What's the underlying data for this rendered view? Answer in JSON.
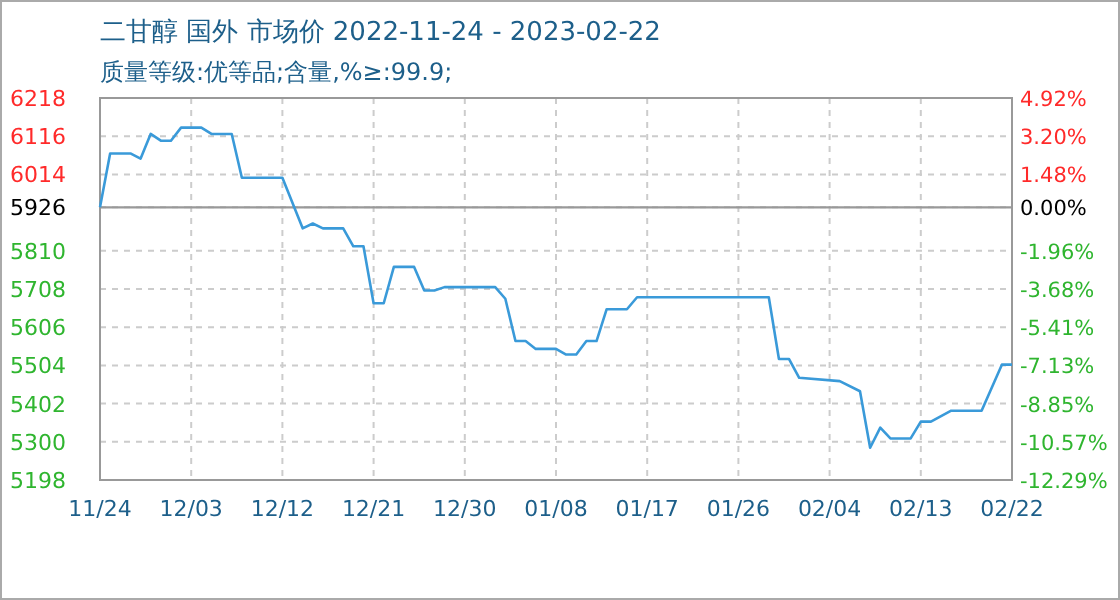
{
  "chart_data": {
    "type": "line",
    "title": "二甘醇 国外 市场价 2022-11-24 - 2023-02-22",
    "subtitle": "质量等级:优等品;含量,%≥:99.9;",
    "x": [
      "2022-11-24",
      "2022-11-25",
      "2022-11-27",
      "2022-11-28",
      "2022-11-29",
      "2022-11-30",
      "2022-12-01",
      "2022-12-02",
      "2022-12-04",
      "2022-12-05",
      "2022-12-07",
      "2022-12-08",
      "2022-12-12",
      "2022-12-14",
      "2022-12-15",
      "2022-12-16",
      "2022-12-18",
      "2022-12-19",
      "2022-12-20",
      "2022-12-21",
      "2022-12-22",
      "2022-12-23",
      "2022-12-25",
      "2022-12-26",
      "2022-12-27",
      "2022-12-28",
      "2023-01-02",
      "2023-01-03",
      "2023-01-04",
      "2023-01-05",
      "2023-01-06",
      "2023-01-08",
      "2023-01-09",
      "2023-01-10",
      "2023-01-11",
      "2023-01-12",
      "2023-01-13",
      "2023-01-15",
      "2023-01-16",
      "2023-01-29",
      "2023-01-30",
      "2023-01-31",
      "2023-02-01",
      "2023-02-05",
      "2023-02-07",
      "2023-02-08",
      "2023-02-09",
      "2023-02-10",
      "2023-02-12",
      "2023-02-13",
      "2023-02-14",
      "2023-02-16",
      "2023-02-19",
      "2023-02-21",
      "2023-02-22"
    ],
    "series": [
      {
        "color": "#3a9ad9",
        "values": [
          5926,
          6070,
          6070,
          6056,
          6122,
          6104,
          6104,
          6139,
          6139,
          6122,
          6122,
          6005,
          6005,
          5870,
          5883,
          5870,
          5870,
          5822,
          5822,
          5670,
          5670,
          5767,
          5767,
          5704,
          5704,
          5713,
          5713,
          5682,
          5569,
          5569,
          5548,
          5548,
          5533,
          5533,
          5569,
          5569,
          5654,
          5654,
          5686,
          5686,
          5521,
          5521,
          5471,
          5462,
          5435,
          5284,
          5338,
          5309,
          5309,
          5354,
          5354,
          5383,
          5383,
          5506,
          5506
        ]
      }
    ],
    "xlim": [
      "2022-11-24",
      "2023-02-22"
    ],
    "xticks": [
      {
        "value": "2022-11-24",
        "label": "11/24"
      },
      {
        "value": "2022-12-03",
        "label": "12/03"
      },
      {
        "value": "2022-12-12",
        "label": "12/12"
      },
      {
        "value": "2022-12-21",
        "label": "12/21"
      },
      {
        "value": "2022-12-30",
        "label": "12/30"
      },
      {
        "value": "2023-01-08",
        "label": "01/08"
      },
      {
        "value": "2023-01-17",
        "label": "01/17"
      },
      {
        "value": "2023-01-26",
        "label": "01/26"
      },
      {
        "value": "2023-02-04",
        "label": "02/04"
      },
      {
        "value": "2023-02-13",
        "label": "02/13"
      },
      {
        "value": "2023-02-22",
        "label": "02/22"
      }
    ],
    "ylim": [
      5198,
      6218
    ],
    "yticks": [
      5198,
      5300,
      5402,
      5504,
      5606,
      5708,
      5810,
      5926,
      6014,
      6116,
      6218
    ],
    "y2lim": [
      -12.29,
      4.92
    ],
    "y2ticks": [
      {
        "value": -12.29,
        "label": "-12.29%"
      },
      {
        "value": -10.57,
        "label": "-10.57%"
      },
      {
        "value": -8.85,
        "label": "-8.85%"
      },
      {
        "value": -7.13,
        "label": "-7.13%"
      },
      {
        "value": -5.41,
        "label": "-5.41%"
      },
      {
        "value": -3.68,
        "label": "-3.68%"
      },
      {
        "value": -1.96,
        "label": "-1.96%"
      },
      {
        "value": 0,
        "label": "0.00%"
      },
      {
        "value": 1.48,
        "label": "1.48%"
      },
      {
        "value": 3.2,
        "label": "3.20%"
      },
      {
        "value": 4.92,
        "label": "4.92%"
      }
    ],
    "ref_lines": [
      {
        "axis": "y",
        "value": 5926,
        "color": "#999999"
      }
    ],
    "grid": true,
    "line_style": "solid",
    "marker": "none"
  }
}
